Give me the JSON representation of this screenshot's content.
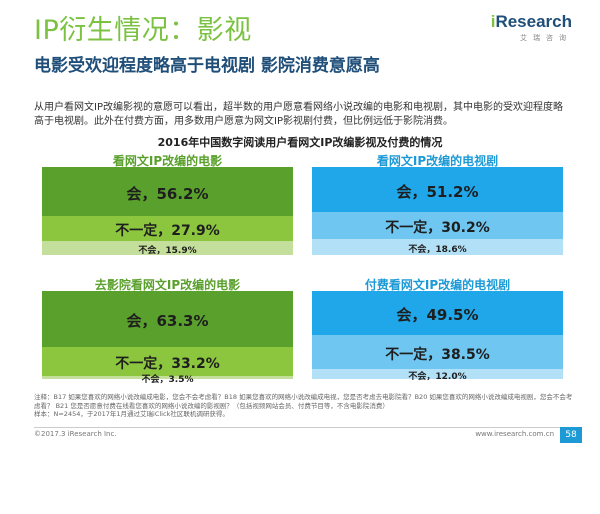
{
  "header": {
    "title": "IP衍生情况：影视",
    "subtitle": "电影受欢迎程度略高于电视剧 影院消费意愿高",
    "logo_name_prefix": "i",
    "logo_name_rest": "Research",
    "logo_cn": "艾瑞咨询"
  },
  "intro": "从用户看网文IP改编影视的意愿可以看出，超半数的用户愿意看网络小说改编的电影和电视剧，其中电影的受欢迎程度略高于电视剧。此外在付费方面，用多数用户愿意为网文IP影视剧付费，但比例远低于影院消费。",
  "chart_title": "2016年中国数字阅读用户看网文IP改编影视及付费的情况",
  "colors": {
    "green_dark": "#5aa02c",
    "green_mid": "#8cc63f",
    "green_light": "#c4df9b",
    "blue_dark": "#1fa7ea",
    "blue_mid": "#6fc6f0",
    "blue_light": "#b2e0f7"
  },
  "chart_data": [
    {
      "type": "bar",
      "title": "看网文IP改编的电影",
      "categories": [
        "会",
        "不一定",
        "不会"
      ],
      "values": [
        56.2,
        27.9,
        15.9
      ],
      "labels": [
        "会，56.2%",
        "不一定，27.9%",
        "不会，15.9%"
      ],
      "theme": "green"
    },
    {
      "type": "bar",
      "title": "看网文IP改编的电视剧",
      "categories": [
        "会",
        "不一定",
        "不会"
      ],
      "values": [
        51.2,
        30.2,
        18.6
      ],
      "labels": [
        "会，51.2%",
        "不一定，30.2%",
        "不会，18.6%"
      ],
      "theme": "blue"
    },
    {
      "type": "bar",
      "title": "去影院看网文IP改编的电影",
      "categories": [
        "会",
        "不一定",
        "不会"
      ],
      "values": [
        63.3,
        33.2,
        3.5
      ],
      "labels": [
        "会，63.3%",
        "不一定，33.2%",
        "不会，3.5%"
      ],
      "theme": "green"
    },
    {
      "type": "bar",
      "title": "付费看网文IP改编的电视剧",
      "categories": [
        "会",
        "不一定",
        "不会"
      ],
      "values": [
        49.5,
        38.5,
        12.0
      ],
      "labels": [
        "会，49.5%",
        "不一定，38.5%",
        "不会，12.0%"
      ],
      "theme": "blue"
    }
  ],
  "footnote_line1": "注释：B17 如果您喜欢的网络小说改编成电影，您会不会考虑看？B18 如果您喜欢的网络小说改编成电视，您是否考虑去电影院看？B20 如果您喜欢的网络小说改编成电视剧，您会不会考虑看？ B21 您是否愿意付费在线看您喜欢的网络小说改编的影视剧？（包括视频网站会员、付费节目等，不含电影院消费）",
  "footnote_line2": "样本：N=2454，于2017年1月通过艾瑞iClick社区联机调研获得。",
  "copyright": "©2017.3 iResearch Inc.",
  "website": "www.iresearch.com.cn",
  "page_number": "58"
}
